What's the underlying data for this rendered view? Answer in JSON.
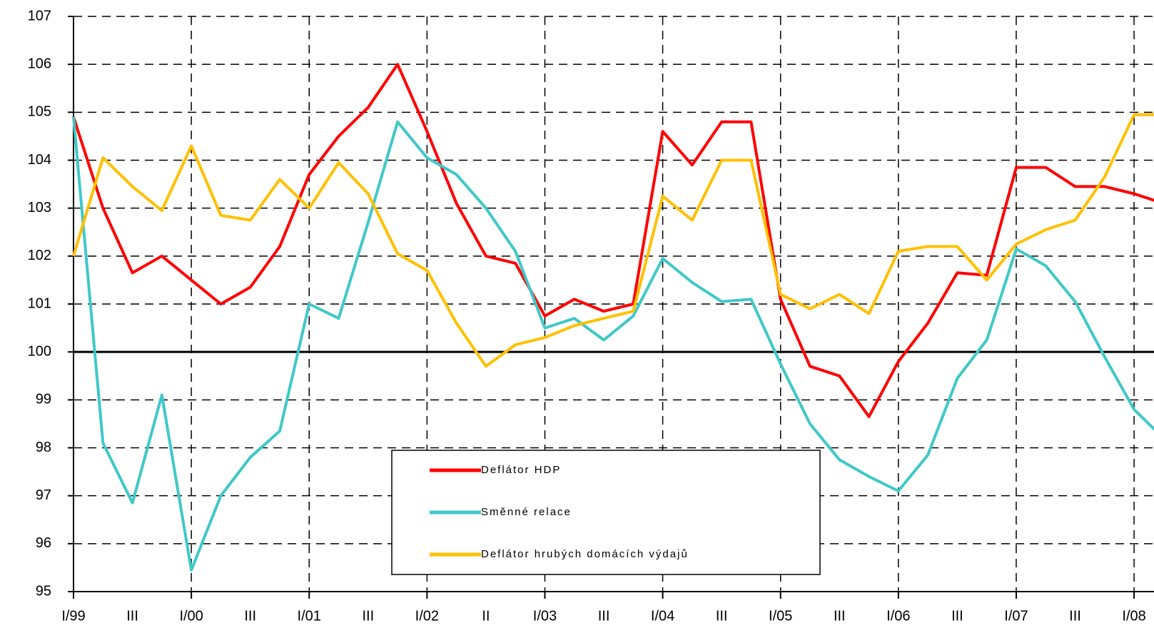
{
  "chart_data": {
    "type": "line",
    "categories": [
      "I/99",
      null,
      "III",
      null,
      "I/00",
      null,
      "III",
      null,
      "I/01",
      null,
      "III",
      null,
      "I/02",
      null,
      "II",
      null,
      "I/03",
      null,
      "III",
      null,
      "I/04",
      null,
      "III",
      null,
      "I/05",
      null,
      "III",
      null,
      "I/06",
      null,
      "III",
      null,
      "I/07",
      null,
      "III",
      null,
      "I/08",
      null
    ],
    "series": [
      {
        "name": "Deflátor HDP",
        "color": "#ff0000",
        "values": [
          104.9,
          103.0,
          101.65,
          102.0,
          101.5,
          101.0,
          101.35,
          102.2,
          103.7,
          104.5,
          105.1,
          106.0,
          104.6,
          103.1,
          102.0,
          101.85,
          100.75,
          101.1,
          100.85,
          101.0,
          104.6,
          103.9,
          104.8,
          104.8,
          101.1,
          99.7,
          99.5,
          98.65,
          99.8,
          100.6,
          101.65,
          101.6,
          103.85,
          103.85,
          103.45,
          103.45,
          103.3,
          103.1
        ]
      },
      {
        "name": "Směnné relace",
        "color": "#40c8c8",
        "values": [
          104.9,
          98.1,
          96.85,
          99.1,
          95.45,
          97.0,
          97.8,
          98.35,
          101.0,
          100.7,
          102.7,
          104.8,
          104.05,
          103.7,
          103.0,
          102.1,
          100.5,
          100.7,
          100.25,
          100.75,
          101.95,
          101.45,
          101.05,
          101.1,
          99.75,
          98.5,
          97.75,
          97.4,
          97.1,
          97.85,
          99.45,
          100.25,
          102.15,
          101.8,
          101.05,
          99.9,
          98.8,
          98.2
        ]
      },
      {
        "name": "Deflátor hrubých domácích výdajů",
        "color": "#ffc000",
        "values": [
          102.0,
          104.05,
          103.45,
          102.95,
          104.3,
          102.85,
          102.75,
          103.6,
          103.0,
          103.95,
          103.3,
          102.05,
          101.7,
          100.6,
          99.7,
          100.15,
          100.3,
          100.55,
          100.7,
          100.85,
          103.25,
          102.75,
          104.0,
          104.0,
          101.2,
          100.9,
          101.2,
          100.8,
          102.1,
          102.2,
          102.2,
          101.5,
          102.25,
          102.55,
          102.75,
          103.65,
          104.95,
          104.95
        ]
      }
    ],
    "ylim": [
      95,
      107
    ],
    "yticks": [
      95,
      96,
      97,
      98,
      99,
      100,
      101,
      102,
      103,
      104,
      105,
      106,
      107
    ],
    "reference_line": 100,
    "grid": true
  }
}
